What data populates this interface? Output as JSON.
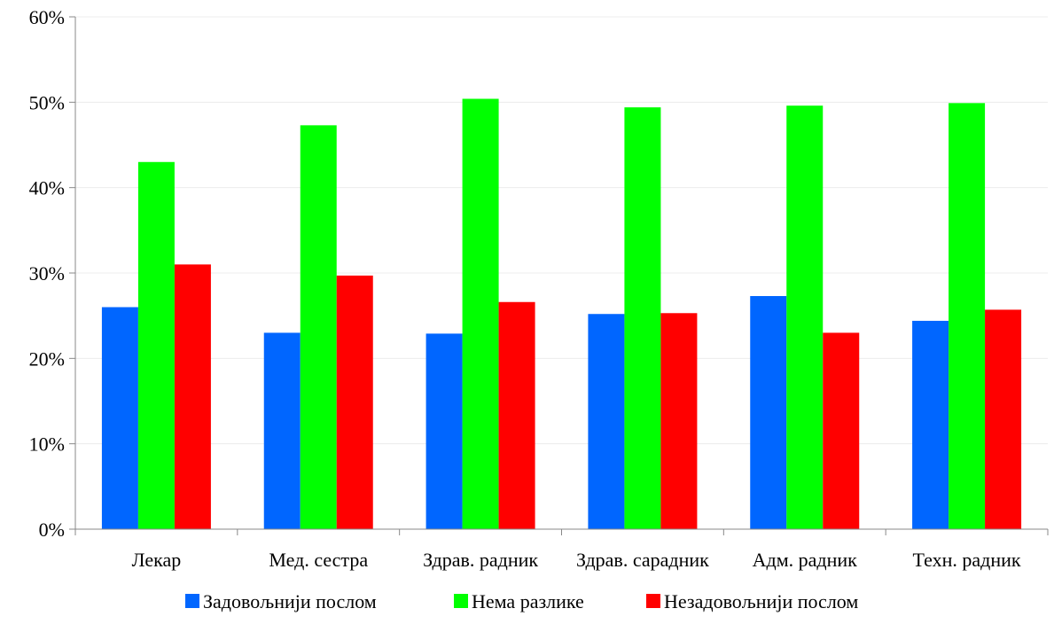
{
  "chart_data": {
    "type": "bar",
    "categories": [
      "Лекар",
      "Мед. сестра",
      "Здрав. радник",
      "Здрав. сарадник",
      "Адм. радник",
      "Техн. радник"
    ],
    "series": [
      {
        "name": "Задовољнији послом",
        "color": "#0066ff",
        "values": [
          26.0,
          23.0,
          22.9,
          25.2,
          27.3,
          24.4
        ]
      },
      {
        "name": "Нема разлике",
        "color": "#00ff00",
        "values": [
          43.0,
          47.3,
          50.4,
          49.4,
          49.6,
          49.9
        ]
      },
      {
        "name": "Незадовољнији послом",
        "color": "#ff0000",
        "values": [
          31.0,
          29.7,
          26.6,
          25.3,
          23.0,
          25.7
        ]
      }
    ],
    "ylim": [
      0,
      60
    ],
    "yticks": [
      0,
      10,
      20,
      30,
      40,
      50,
      60
    ],
    "ytick_labels": [
      "0%",
      "10%",
      "20%",
      "30%",
      "40%",
      "50%",
      "60%"
    ],
    "grid": true,
    "legend_position": "bottom"
  }
}
